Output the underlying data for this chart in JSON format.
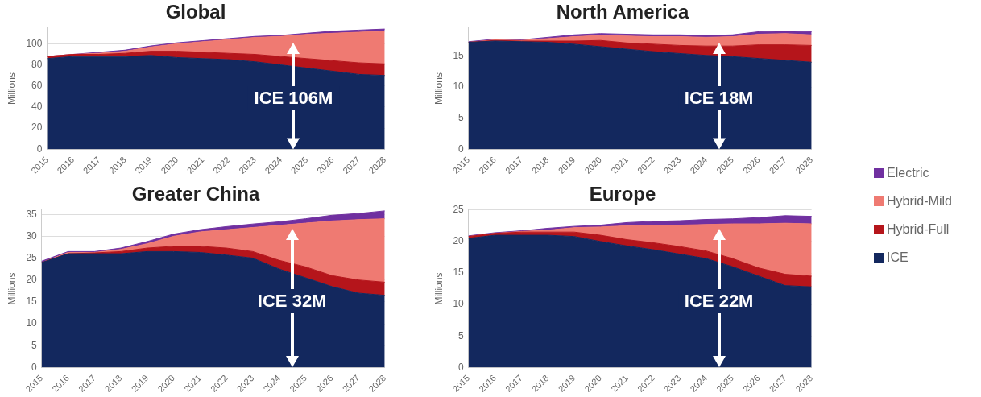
{
  "chart_data": [
    {
      "type": "area",
      "title": "Global",
      "ylabel": "Millions",
      "stacked": true,
      "grid": "y",
      "categories": [
        "2015",
        "2016",
        "2017",
        "2018",
        "2019",
        "2020",
        "2021",
        "2022",
        "2023",
        "2024",
        "2025",
        "2026",
        "2027",
        "2028"
      ],
      "ylim": [
        0,
        115
      ],
      "yticks": [
        0,
        20,
        40,
        60,
        80,
        100
      ],
      "series": [
        {
          "color": "#13285e",
          "values": [
            86,
            88,
            88,
            88,
            89,
            87,
            86,
            85,
            83,
            80,
            77,
            74,
            71,
            70
          ]
        },
        {
          "color": "#b5151b",
          "values": [
            2,
            2,
            2,
            3,
            4,
            6,
            6,
            6,
            7,
            8,
            9,
            10,
            11,
            11
          ]
        },
        {
          "color": "#ef7a72",
          "values": [
            0,
            0,
            1,
            2,
            4,
            7,
            10,
            13,
            16,
            19,
            23,
            26,
            29,
            31
          ]
        },
        {
          "color": "#7030a0",
          "values": [
            0,
            0,
            1,
            1,
            1,
            1,
            1,
            1,
            1,
            1,
            1,
            2,
            2,
            2
          ]
        }
      ],
      "annotations": [
        "ICE 106M"
      ]
    },
    {
      "type": "area",
      "title": "North America",
      "ylabel": "Millions",
      "stacked": true,
      "grid": "y",
      "categories": [
        "2015",
        "2016",
        "2017",
        "2018",
        "2019",
        "2020",
        "2021",
        "2022",
        "2023",
        "2024",
        "2025",
        "2026",
        "2027",
        "2028"
      ],
      "ylim": [
        0,
        19.5
      ],
      "yticks": [
        0,
        5,
        10,
        15
      ],
      "series": [
        {
          "color": "#13285e",
          "values": [
            17.2,
            17.4,
            17.3,
            17.2,
            16.9,
            16.5,
            16.1,
            15.7,
            15.4,
            15.1,
            14.9,
            14.6,
            14.3,
            14.0
          ]
        },
        {
          "color": "#b5151b",
          "values": [
            0,
            0.1,
            0.1,
            0.2,
            0.5,
            1.0,
            1.0,
            1.2,
            1.3,
            1.5,
            1.7,
            2.2,
            2.5,
            2.7
          ]
        },
        {
          "color": "#ef7a72",
          "values": [
            0,
            0.1,
            0.1,
            0.4,
            0.7,
            0.8,
            1.1,
            1.2,
            1.4,
            1.4,
            1.5,
            1.7,
            1.8,
            1.7
          ]
        },
        {
          "color": "#7030a0",
          "values": [
            0.1,
            0.1,
            0.1,
            0.2,
            0.3,
            0.3,
            0.3,
            0.3,
            0.3,
            0.3,
            0.3,
            0.4,
            0.4,
            0.5
          ]
        }
      ],
      "annotations": [
        "ICE 18M"
      ]
    },
    {
      "type": "area",
      "title": "Greater China",
      "ylabel": "Millions",
      "stacked": true,
      "grid": "y",
      "categories": [
        "2015",
        "2016",
        "2017",
        "2018",
        "2019",
        "2020",
        "2021",
        "2022",
        "2023",
        "2024",
        "2025",
        "2026",
        "2027",
        "2028"
      ],
      "ylim": [
        0,
        36
      ],
      "yticks": [
        0,
        5,
        10,
        15,
        20,
        25,
        30,
        35
      ],
      "series": [
        {
          "color": "#13285e",
          "values": [
            24,
            26,
            26,
            26,
            26.5,
            26.5,
            26.3,
            25.7,
            25,
            22.5,
            20.5,
            18.5,
            17,
            16.5
          ]
        },
        {
          "color": "#b5151b",
          "values": [
            0,
            0,
            0.2,
            0.5,
            0.8,
            1.2,
            1.4,
            1.6,
            1.5,
            2,
            2.5,
            2.5,
            3,
            3
          ]
        },
        {
          "color": "#ef7a72",
          "values": [
            0,
            0.3,
            0.1,
            0.5,
            1,
            2.3,
            3.3,
            4.2,
            5.5,
            8,
            10,
            12.5,
            13.8,
            14.5
          ]
        },
        {
          "color": "#7030a0",
          "values": [
            0.3,
            0.2,
            0.2,
            0.3,
            0.5,
            0.5,
            0.5,
            0.7,
            0.8,
            0.8,
            1,
            1.3,
            1.4,
            1.8
          ]
        }
      ],
      "annotations": [
        "ICE 32M"
      ]
    },
    {
      "type": "area",
      "title": "Europe",
      "ylabel": "Millions",
      "stacked": true,
      "grid": "y",
      "legend": "right",
      "categories": [
        "2015",
        "2016",
        "2017",
        "2018",
        "2019",
        "2020",
        "2021",
        "2022",
        "2023",
        "2024",
        "2025",
        "2026",
        "2027",
        "2028"
      ],
      "ylim": [
        0,
        25
      ],
      "yticks": [
        0,
        5,
        10,
        15,
        20,
        25
      ],
      "series": [
        {
          "name": "ICE",
          "color": "#13285e",
          "values": [
            20.5,
            21,
            21,
            21,
            20.8,
            20,
            19.3,
            18.7,
            18,
            17.3,
            16,
            14.5,
            13,
            12.8
          ]
        },
        {
          "name": "Hybrid-Full",
          "color": "#b5151b",
          "values": [
            0.3,
            0.3,
            0.5,
            0.5,
            0.7,
            1,
            1,
            1.1,
            1.2,
            1.2,
            1.3,
            1.3,
            1.8,
            1.7
          ]
        },
        {
          "name": "Hybrid-Mild",
          "color": "#ef7a72",
          "values": [
            0,
            0,
            0.1,
            0.3,
            0.7,
            1.3,
            2.2,
            2.8,
            3.4,
            4.2,
            5.5,
            7,
            8.1,
            8.3
          ]
        },
        {
          "name": "Electric",
          "color": "#7030a0",
          "values": [
            0.1,
            0.1,
            0.1,
            0.3,
            0.2,
            0.3,
            0.5,
            0.6,
            0.7,
            0.8,
            0.8,
            1,
            1.2,
            1.2
          ]
        }
      ],
      "annotations": [
        "ICE 22M"
      ]
    }
  ]
}
